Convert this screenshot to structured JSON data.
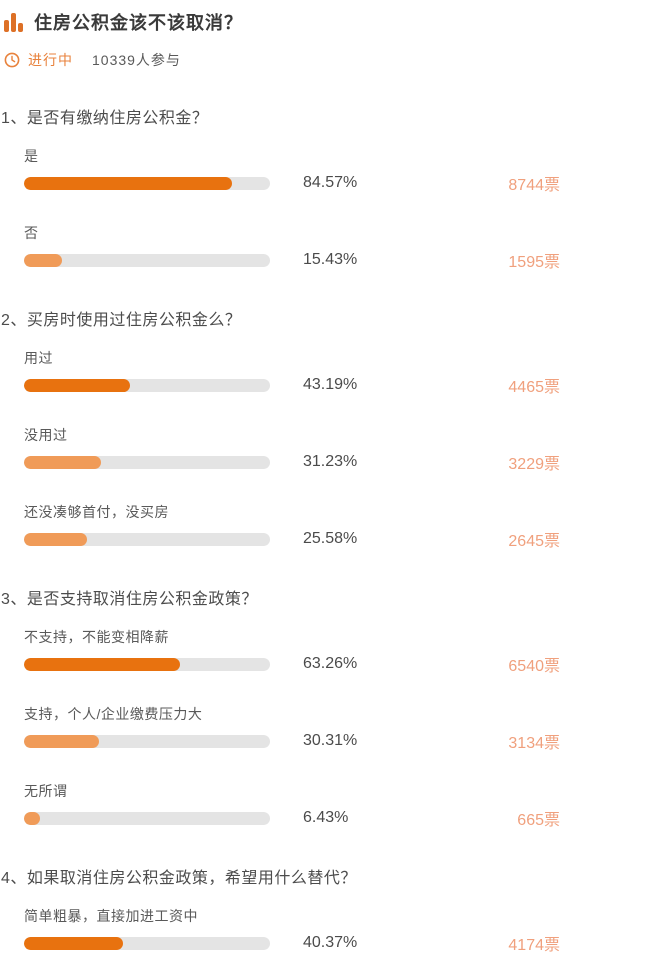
{
  "header": {
    "title": "住房公积金该不该取消？",
    "status_label": "进行中",
    "participants": "10339人参与"
  },
  "colors": {
    "accent_strong": "#e8720f",
    "accent_soft": "#f09b58",
    "votes_text": "#f0a07d",
    "track": "#e4e4e4",
    "status_orange": "#e8823c",
    "icon_orange": "#dd7026"
  },
  "questions": [
    {
      "title": "1、是否有缴纳住房公积金？",
      "options": [
        {
          "label": "是",
          "percent": "84.57%",
          "votes": "8744票",
          "value": 84.57,
          "highlight": true
        },
        {
          "label": "否",
          "percent": "15.43%",
          "votes": "1595票",
          "value": 15.43,
          "highlight": false
        }
      ]
    },
    {
      "title": "2、买房时使用过住房公积金么？",
      "options": [
        {
          "label": "用过",
          "percent": "43.19%",
          "votes": "4465票",
          "value": 43.19,
          "highlight": true
        },
        {
          "label": "没用过",
          "percent": "31.23%",
          "votes": "3229票",
          "value": 31.23,
          "highlight": false
        },
        {
          "label": "还没凑够首付，没买房",
          "percent": "25.58%",
          "votes": "2645票",
          "value": 25.58,
          "highlight": false
        }
      ]
    },
    {
      "title": "3、是否支持取消住房公积金政策？",
      "options": [
        {
          "label": "不支持，不能变相降薪",
          "percent": "63.26%",
          "votes": "6540票",
          "value": 63.26,
          "highlight": true
        },
        {
          "label": "支持，个人/企业缴费压力大",
          "percent": "30.31%",
          "votes": "3134票",
          "value": 30.31,
          "highlight": false
        },
        {
          "label": "无所谓",
          "percent": "6.43%",
          "votes": "665票",
          "value": 6.43,
          "highlight": false
        }
      ]
    },
    {
      "title": "4、如果取消住房公积金政策，希望用什么替代？",
      "options": [
        {
          "label": "简单粗暴，直接加进工资中",
          "percent": "40.37%",
          "votes": "4174票",
          "value": 40.37,
          "highlight": true
        }
      ]
    }
  ]
}
